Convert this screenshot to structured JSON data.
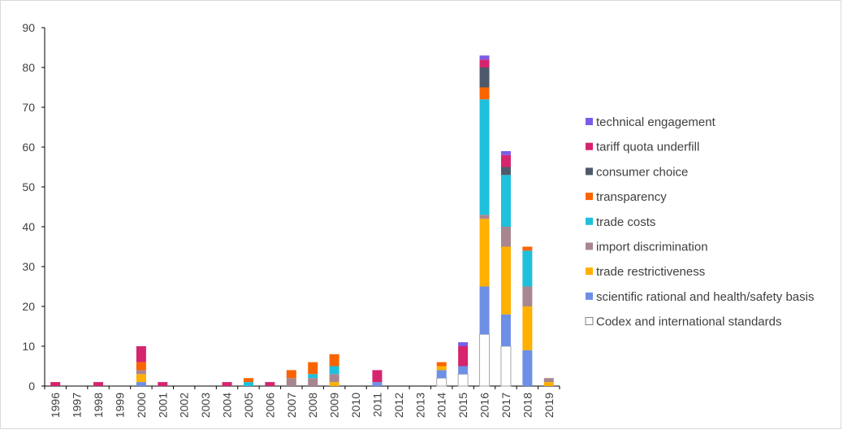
{
  "chart_data": {
    "type": "bar",
    "stacked": true,
    "title": "",
    "xlabel": "",
    "ylabel": "",
    "ylim": [
      0,
      90
    ],
    "yticks": [
      0,
      10,
      20,
      30,
      40,
      50,
      60,
      70,
      80,
      90
    ],
    "grid": false,
    "legend_position": "right",
    "categories": [
      "1996",
      "1997",
      "1998",
      "1999",
      "2000",
      "2001",
      "2002",
      "2003",
      "2004",
      "2005",
      "2006",
      "2007",
      "2008",
      "2009",
      "2010",
      "2011",
      "2012",
      "2013",
      "2014",
      "2015",
      "2016",
      "2017",
      "2018",
      "2019"
    ],
    "series": [
      {
        "name": "Codex and international standards",
        "color": "#ffffff",
        "values": [
          0,
          0,
          0,
          0,
          0,
          0,
          0,
          0,
          0,
          0,
          0,
          0,
          0,
          0,
          0,
          0,
          0,
          0,
          2,
          3,
          13,
          10,
          0,
          0
        ]
      },
      {
        "name": "scientific rational and health/safety basis",
        "color": "#6d8fe6",
        "values": [
          0,
          0,
          0,
          0,
          1,
          0,
          0,
          0,
          0,
          0,
          0,
          0,
          0,
          0,
          0,
          1,
          0,
          0,
          2,
          2,
          12,
          8,
          9,
          0
        ]
      },
      {
        "name": "trade restrictiveness",
        "color": "#ffb000",
        "values": [
          0,
          0,
          0,
          0,
          2,
          0,
          0,
          0,
          0,
          0,
          0,
          0,
          0,
          1,
          0,
          0,
          0,
          0,
          1,
          0,
          17,
          17,
          11,
          1
        ]
      },
      {
        "name": "import discrimination",
        "color": "#a8868f",
        "values": [
          0,
          0,
          0,
          0,
          1,
          0,
          0,
          0,
          0,
          0,
          0,
          2,
          2,
          2,
          0,
          0,
          0,
          0,
          0,
          0,
          1,
          5,
          5,
          1
        ]
      },
      {
        "name": "trade costs",
        "color": "#1ec0dc",
        "values": [
          0,
          0,
          0,
          0,
          0,
          0,
          0,
          0,
          0,
          1,
          0,
          0,
          1,
          2,
          0,
          0,
          0,
          0,
          0,
          0,
          29,
          13,
          9,
          0
        ]
      },
      {
        "name": "transparency",
        "color": "#fa6400",
        "values": [
          0,
          0,
          0,
          0,
          2,
          0,
          0,
          0,
          0,
          1,
          0,
          2,
          3,
          3,
          0,
          0,
          0,
          0,
          1,
          0,
          3,
          0,
          1,
          0
        ]
      },
      {
        "name": "consumer choice",
        "color": "#4e5a6b",
        "values": [
          0,
          0,
          0,
          0,
          0,
          0,
          0,
          0,
          0,
          0,
          0,
          0,
          0,
          0,
          0,
          0,
          0,
          0,
          0,
          0,
          5,
          2,
          0,
          0
        ]
      },
      {
        "name": "tariff quota underfill",
        "color": "#d6246e",
        "values": [
          1,
          0,
          1,
          0,
          4,
          1,
          0,
          0,
          1,
          0,
          1,
          0,
          0,
          0,
          0,
          3,
          0,
          0,
          0,
          5,
          2,
          3,
          0,
          0
        ]
      },
      {
        "name": "technical engagement",
        "color": "#7b5ce6",
        "values": [
          0,
          0,
          0,
          0,
          0,
          0,
          0,
          0,
          0,
          0,
          0,
          0,
          0,
          0,
          0,
          0,
          0,
          0,
          0,
          1,
          1,
          1,
          0,
          0
        ]
      }
    ]
  }
}
